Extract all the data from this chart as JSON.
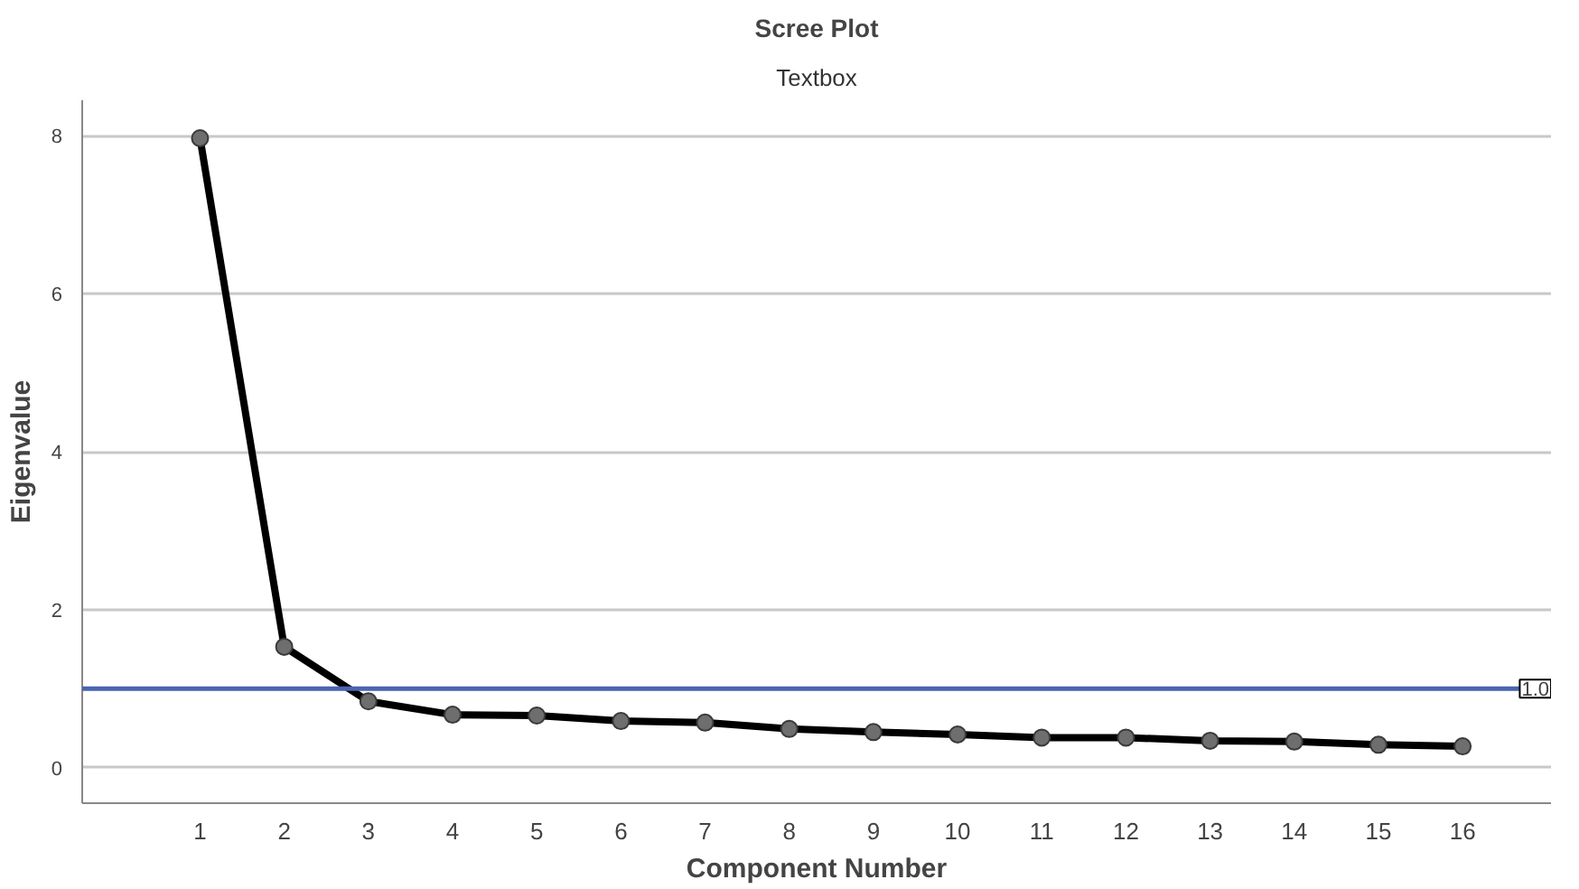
{
  "chart_data": {
    "type": "line",
    "title": "Scree Plot",
    "subtitle": "Textbox",
    "xlabel": "Component Number",
    "ylabel": "Eigenvalue",
    "x": [
      1,
      2,
      3,
      4,
      5,
      6,
      7,
      8,
      9,
      10,
      11,
      12,
      13,
      14,
      15,
      16
    ],
    "series": [
      {
        "color": "#000000",
        "values": [
          7.97,
          1.53,
          0.84,
          0.67,
          0.66,
          0.59,
          0.57,
          0.49,
          0.45,
          0.42,
          0.38,
          0.38,
          0.34,
          0.33,
          0.29,
          0.27
        ]
      }
    ],
    "xlim": [
      -0.4,
      17.05
    ],
    "xticks": [
      1,
      2,
      3,
      4,
      5,
      6,
      7,
      8,
      9,
      10,
      11,
      12,
      13,
      14,
      15,
      16
    ],
    "ylim": [
      -0.45,
      8.45
    ],
    "yticks": [
      0,
      2,
      4,
      6,
      8
    ],
    "ref_lines": [
      {
        "axis": "y",
        "value": 1.0,
        "label": "1.0",
        "color": "#4a64b0"
      }
    ],
    "grid": "y",
    "marker": "circle",
    "line_style": "solid"
  }
}
